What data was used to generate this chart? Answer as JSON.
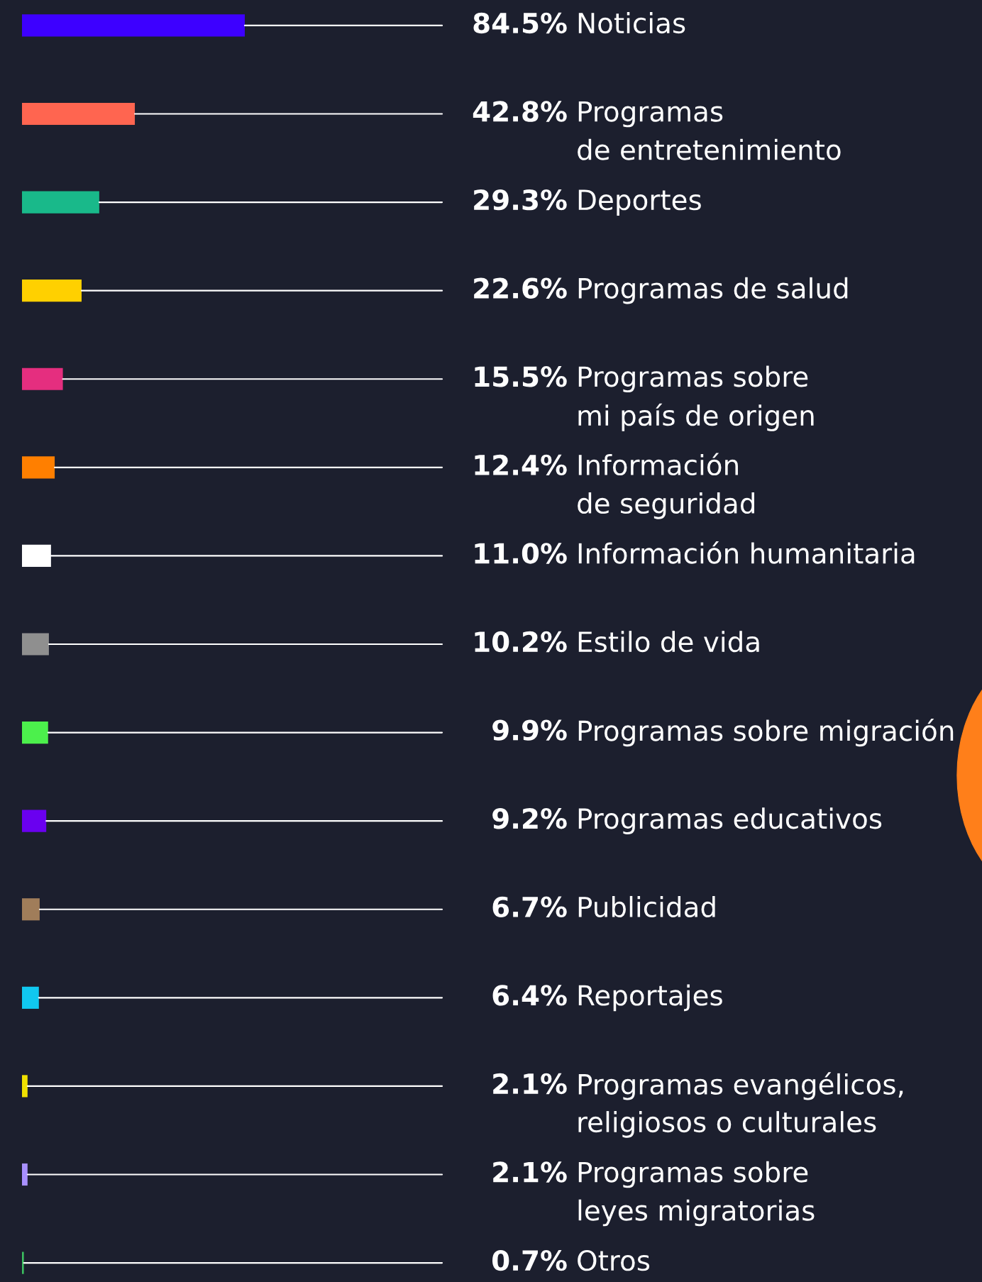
{
  "chart_data": {
    "type": "bar",
    "orientation": "horizontal",
    "categories": [
      "Noticias",
      "Programas\nde entretenimiento",
      "Deportes",
      "Programas de salud",
      "Programas sobre\nmi país de origen",
      "Información\nde seguridad",
      "Información humanitaria",
      "Estilo de vida",
      "Programas sobre migración",
      "Programas educativos",
      "Publicidad",
      "Reportajes",
      "Programas evangélicos,\nreligiosos o culturales",
      "Programas sobre\nleyes migratorias",
      "Otros"
    ],
    "values": [
      84.5,
      42.8,
      29.3,
      22.6,
      15.5,
      12.4,
      11.0,
      10.2,
      9.9,
      9.2,
      6.7,
      6.4,
      2.1,
      2.1,
      0.7
    ],
    "value_labels": [
      "84.5%",
      "42.8%",
      "29.3%",
      "22.6%",
      "15.5%",
      "12.4%",
      "11.0%",
      "10.2%",
      "9.9%",
      "9.2%",
      "6.7%",
      "6.4%",
      "2.1%",
      "2.1%",
      "0.7%"
    ],
    "colors": [
      "#3d00ff",
      "#ff6550",
      "#19b98a",
      "#ffd000",
      "#e52e7f",
      "#ff7f00",
      "#ffffff",
      "#8f8f8f",
      "#4cf04c",
      "#6a00f0",
      "#a07d5a",
      "#10c8f0",
      "#f0e000",
      "#a890ff",
      "#3cc060"
    ]
  }
}
